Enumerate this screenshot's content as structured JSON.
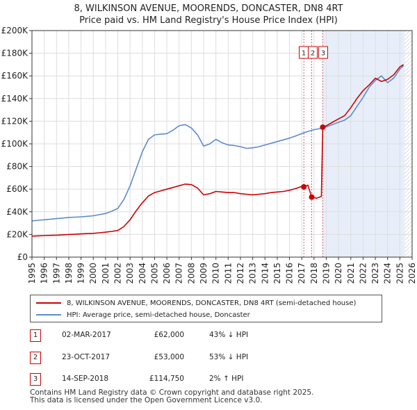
{
  "header": {
    "title_line1": "8, WILKINSON AVENUE, MOORENDS, DONCASTER, DN8 4RT",
    "title_line2": "Price paid vs. HM Land Registry's House Price Index (HPI)"
  },
  "colors": {
    "property": "#cc0000",
    "hpi": "#5b8bd0",
    "grid": "#dddddd",
    "shade": "#e8eef9",
    "marker_line": "#d06070"
  },
  "legend": {
    "property_label": "8, WILKINSON AVENUE, MOORENDS, DONCASTER, DN8 4RT (semi-detached house)",
    "hpi_label": "HPI: Average price, semi-detached house, Doncaster"
  },
  "transactions": [
    {
      "id": "1",
      "date": "02-MAR-2017",
      "price": "£62,000",
      "hpi": "43% ↓ HPI"
    },
    {
      "id": "2",
      "date": "23-OCT-2017",
      "price": "£53,000",
      "hpi": "53% ↓ HPI"
    },
    {
      "id": "3",
      "date": "14-SEP-2018",
      "price": "£114,750",
      "hpi": "2% ↑ HPI"
    }
  ],
  "footer": {
    "line1": "Contains HM Land Registry data © Crown copyright and database right 2025.",
    "line2": "This data is licensed under the Open Government Licence v3.0."
  },
  "chart_data": {
    "type": "line",
    "title": "8, WILKINSON AVENUE, MOORENDS, DONCASTER, DN8 4RT",
    "subtitle": "Price paid vs. HM Land Registry's House Price Index (HPI)",
    "xlabel": "",
    "ylabel": "",
    "xlim": [
      1995,
      2026
    ],
    "ylim": [
      0,
      200000
    ],
    "x_ticks": [
      "1995",
      "1996",
      "1997",
      "1998",
      "1999",
      "2000",
      "2001",
      "2002",
      "2003",
      "2004",
      "2005",
      "2006",
      "2007",
      "2008",
      "2009",
      "2010",
      "2011",
      "2012",
      "2013",
      "2014",
      "2015",
      "2016",
      "2017",
      "2018",
      "2019",
      "2020",
      "2021",
      "2022",
      "2023",
      "2024",
      "2025",
      "2026"
    ],
    "y_ticks": [
      {
        "value": 0,
        "label": "£0"
      },
      {
        "value": 20000,
        "label": "£20K"
      },
      {
        "value": 40000,
        "label": "£40K"
      },
      {
        "value": 60000,
        "label": "£60K"
      },
      {
        "value": 80000,
        "label": "£80K"
      },
      {
        "value": 100000,
        "label": "£100K"
      },
      {
        "value": 120000,
        "label": "£120K"
      },
      {
        "value": 140000,
        "label": "£140K"
      },
      {
        "value": 160000,
        "label": "£160K"
      },
      {
        "value": 180000,
        "label": "£180K"
      },
      {
        "value": 200000,
        "label": "£200K"
      }
    ],
    "grid": true,
    "shaded_region": [
      2018.7,
      2025.4
    ],
    "hatched_region": [
      2025.4,
      2026
    ],
    "events": [
      {
        "label": "1",
        "x": 2017.17,
        "value": 62000
      },
      {
        "label": "2",
        "x": 2017.81,
        "value": 53000
      },
      {
        "label": "3",
        "x": 2018.71,
        "value": 114750
      }
    ],
    "series": [
      {
        "name": "8, WILKINSON AVENUE, MOORENDS, DONCASTER, DN8 4RT (semi-detached house)",
        "color": "#cc0000",
        "x": [
          1995.0,
          1995.5,
          1996.0,
          1996.5,
          1997.0,
          1997.5,
          1998.0,
          1998.5,
          1999.0,
          1999.5,
          2000.0,
          2000.5,
          2001.0,
          2001.5,
          2002.0,
          2002.5,
          2003.0,
          2003.5,
          2004.0,
          2004.5,
          2005.0,
          2005.5,
          2006.0,
          2006.5,
          2007.0,
          2007.5,
          2008.0,
          2008.5,
          2009.0,
          2009.5,
          2010.0,
          2010.5,
          2011.0,
          2011.5,
          2012.0,
          2012.5,
          2013.0,
          2013.5,
          2014.0,
          2014.5,
          2015.0,
          2015.5,
          2016.0,
          2016.5,
          2017.0,
          2017.17,
          2017.5,
          2017.81,
          2018.2,
          2018.6,
          2018.71,
          2019.0,
          2019.5,
          2020.0,
          2020.5,
          2021.0,
          2021.5,
          2022.0,
          2022.5,
          2023.0,
          2023.5,
          2024.0,
          2024.5,
          2025.0,
          2025.3
        ],
        "values": [
          18500,
          18800,
          19000,
          19200,
          19400,
          19700,
          20000,
          20200,
          20500,
          20800,
          21000,
          21500,
          22000,
          22700,
          23500,
          27000,
          33000,
          41000,
          48000,
          54000,
          57000,
          58500,
          60000,
          61500,
          63000,
          64500,
          64000,
          61000,
          55000,
          56000,
          58000,
          57500,
          57000,
          57000,
          56000,
          55500,
          55000,
          55500,
          56000,
          57000,
          57500,
          58000,
          59000,
          60500,
          62500,
          62000,
          63500,
          53000,
          52000,
          53500,
          114750,
          116000,
          119000,
          122000,
          125000,
          132000,
          140000,
          147000,
          152000,
          158000,
          155000,
          157000,
          161000,
          168000,
          170000
        ]
      },
      {
        "name": "HPI: Average price, semi-detached house, Doncaster",
        "color": "#5b8bd0",
        "x": [
          1995.0,
          1995.5,
          1996.0,
          1996.5,
          1997.0,
          1997.5,
          1998.0,
          1998.5,
          1999.0,
          1999.5,
          2000.0,
          2000.5,
          2001.0,
          2001.5,
          2002.0,
          2002.5,
          2003.0,
          2003.5,
          2004.0,
          2004.5,
          2005.0,
          2005.5,
          2006.0,
          2006.5,
          2007.0,
          2007.5,
          2008.0,
          2008.5,
          2009.0,
          2009.5,
          2010.0,
          2010.5,
          2011.0,
          2011.5,
          2012.0,
          2012.5,
          2013.0,
          2013.5,
          2014.0,
          2014.5,
          2015.0,
          2015.5,
          2016.0,
          2016.5,
          2017.0,
          2017.5,
          2018.0,
          2018.5,
          2019.0,
          2019.5,
          2020.0,
          2020.5,
          2021.0,
          2021.5,
          2022.0,
          2022.5,
          2023.0,
          2023.5,
          2024.0,
          2024.5,
          2025.0,
          2025.3
        ],
        "values": [
          32000,
          32500,
          33000,
          33500,
          34000,
          34500,
          35000,
          35300,
          35600,
          36000,
          36500,
          37500,
          38500,
          40500,
          43000,
          51000,
          63000,
          78000,
          93000,
          104000,
          108000,
          108500,
          109000,
          112000,
          116000,
          117000,
          114000,
          108000,
          98000,
          100000,
          104000,
          101000,
          99000,
          98500,
          97500,
          96000,
          96500,
          97500,
          99000,
          100500,
          102000,
          103500,
          105000,
          107000,
          109000,
          111000,
          112500,
          113500,
          115000,
          117000,
          119000,
          121000,
          125000,
          133000,
          141000,
          150000,
          156000,
          160000,
          154000,
          158000,
          166000,
          169000
        ]
      }
    ]
  }
}
